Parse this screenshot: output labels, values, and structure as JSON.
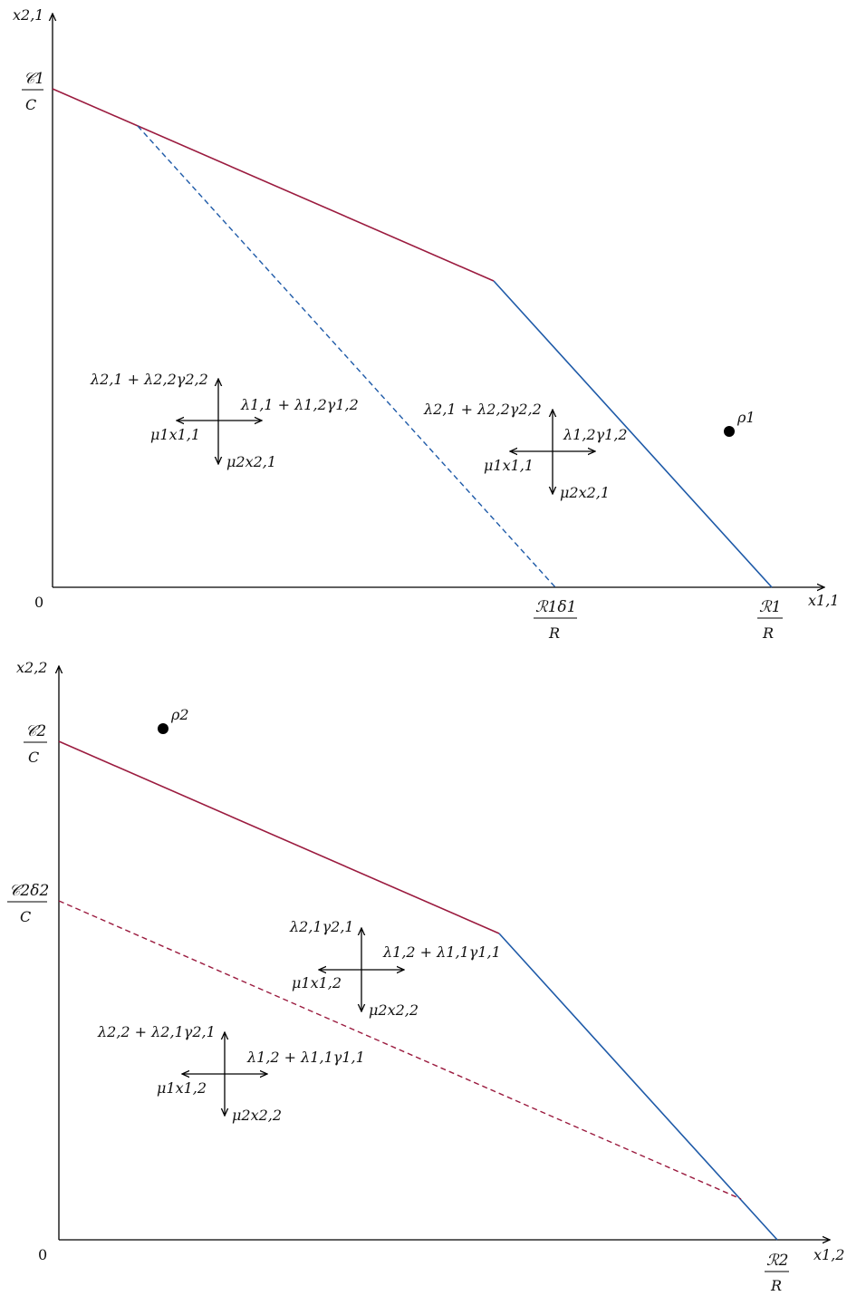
{
  "colors": {
    "boundary_red": "#9b1b3f",
    "boundary_blue": "#1e5aa8",
    "axis": "#000000",
    "point": "#000000"
  },
  "diagram1": {
    "origin": "0",
    "y_axis": "x2,1",
    "x_axis": "x1,1",
    "y_tick_top": "𝒞1",
    "y_tick_bottom": "C",
    "x_tick_a_top": "ℛ1δ1",
    "x_tick_a_bottom": "R",
    "x_tick_b_top": "ℛ1",
    "x_tick_b_bottom": "R",
    "point": "ρ1",
    "cross_left": {
      "up": "λ2,1 + λ2,2γ2,2",
      "right": "λ1,1 + λ1,2γ1,2",
      "left": "μ1x1,1",
      "down": "μ2x2,1"
    },
    "cross_right": {
      "up": "λ2,1 + λ2,2γ2,2",
      "right": "λ1,2γ1,2",
      "left": "μ1x1,1",
      "down": "μ2x2,1"
    }
  },
  "diagram2": {
    "origin": "0",
    "y_axis": "x2,2",
    "x_axis": "x1,2",
    "y_tick_a_top": "𝒞2",
    "y_tick_a_bottom": "C",
    "y_tick_b_top": "𝒞2δ2",
    "y_tick_b_bottom": "C",
    "x_tick_top": "ℛ2",
    "x_tick_bottom": "R",
    "point": "ρ2",
    "cross_upper": {
      "up": "λ2,1γ2,1",
      "right": "λ1,2 + λ1,1γ1,1",
      "left": "μ1x1,2",
      "down": "μ2x2,2"
    },
    "cross_lower": {
      "up": "λ2,2 + λ2,1γ2,1",
      "right": "λ1,2 + λ1,1γ1,1",
      "left": "μ1x1,2",
      "down": "μ2x2,2"
    }
  }
}
